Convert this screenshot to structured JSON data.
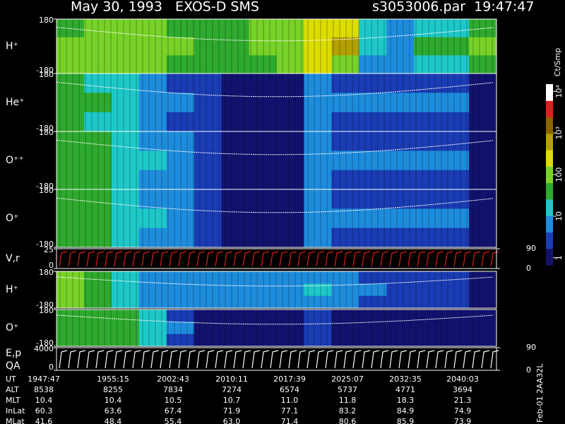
{
  "header": {
    "title": "May 30, 1993   EXOS-D SMS",
    "file": "s3053006.par  19:47:47",
    "footer": "Feb-01 2AA32L"
  },
  "colorbar": {
    "label": "Ct/Smp",
    "scale": "log",
    "lim": [
      0.67,
      15000
    ],
    "ticks": [
      1,
      10,
      100,
      {
        "value": 1000,
        "label": "10³"
      },
      {
        "value": 10000,
        "label": "10⁴"
      }
    ],
    "colors": [
      "#12126e",
      "#1a3cb4",
      "#1e8cdc",
      "#1ec8c8",
      "#2eaa2e",
      "#78d228",
      "#dcdc00",
      "#b4a000",
      "#8c6400",
      "#dc1e1e",
      "#ffffff"
    ]
  },
  "chart_data": [
    {
      "type": "heatmap",
      "label": "H⁺",
      "ylim": [
        -180,
        180
      ],
      "yticks": [
        -180,
        180
      ],
      "values": [
        [
          60,
          80,
          100,
          80,
          60,
          50,
          60,
          80,
          120,
          200,
          300,
          15,
          8,
          20,
          20,
          50
        ],
        [
          100,
          120,
          150,
          120,
          80,
          60,
          60,
          80,
          150,
          300,
          400,
          20,
          10,
          30,
          30,
          80
        ],
        [
          80,
          100,
          120,
          100,
          60,
          50,
          50,
          60,
          100,
          200,
          150,
          10,
          5,
          15,
          15,
          60
        ]
      ]
    },
    {
      "type": "heatmap",
      "label": "He⁺",
      "ylim": [
        -180,
        180
      ],
      "yticks": [
        -180,
        180
      ],
      "values": [
        [
          30,
          25,
          15,
          8,
          4,
          2,
          1,
          1,
          1,
          5,
          3,
          3,
          3,
          3,
          3,
          1
        ],
        [
          40,
          35,
          20,
          10,
          5,
          2,
          1,
          1,
          1,
          8,
          5,
          5,
          5,
          5,
          5,
          1
        ],
        [
          30,
          25,
          15,
          8,
          4,
          2,
          1,
          1,
          1,
          5,
          3,
          3,
          3,
          3,
          3,
          1
        ]
      ]
    },
    {
      "type": "heatmap",
      "label": "O⁺⁺",
      "ylim": [
        -180,
        180
      ],
      "yticks": [
        -180,
        180
      ],
      "values": [
        [
          40,
          30,
          20,
          10,
          5,
          2,
          1,
          1,
          1,
          6,
          4,
          4,
          4,
          4,
          4,
          1
        ],
        [
          50,
          40,
          25,
          12,
          6,
          2,
          1,
          1,
          1,
          8,
          5,
          5,
          5,
          5,
          5,
          1
        ],
        [
          40,
          30,
          20,
          10,
          5,
          2,
          1,
          1,
          1,
          6,
          4,
          4,
          4,
          4,
          4,
          1
        ]
      ]
    },
    {
      "type": "heatmap",
      "label": "O⁺",
      "ylim": [
        -180,
        180
      ],
      "yticks": [
        -180,
        180
      ],
      "values": [
        [
          40,
          30,
          15,
          10,
          6,
          3,
          1,
          1,
          1,
          6,
          4,
          4,
          4,
          4,
          4,
          1
        ],
        [
          50,
          40,
          20,
          12,
          8,
          3,
          1,
          1,
          1,
          8,
          5,
          5,
          5,
          5,
          5,
          1
        ],
        [
          40,
          30,
          15,
          10,
          6,
          3,
          1,
          1,
          1,
          6,
          4,
          4,
          4,
          4,
          4,
          1
        ]
      ]
    },
    {
      "type": "line",
      "label": "V,r",
      "ylim": [
        0,
        25
      ],
      "yticks": [
        0,
        25
      ],
      "y2lim": [
        0,
        90
      ],
      "y2ticks": [
        0,
        90
      ],
      "color": "#dc1e1e"
    },
    {
      "type": "heatmap",
      "label": "H⁺",
      "ylim": [
        -180,
        180
      ],
      "yticks": [
        -180,
        180
      ],
      "values": [
        [
          100,
          40,
          20,
          8,
          5,
          5,
          5,
          5,
          6,
          8,
          6,
          4,
          3,
          3,
          3,
          1
        ],
        [
          150,
          50,
          25,
          10,
          6,
          6,
          6,
          6,
          8,
          12,
          8,
          5,
          4,
          4,
          4,
          1
        ],
        [
          100,
          40,
          20,
          8,
          5,
          5,
          5,
          5,
          6,
          8,
          6,
          4,
          3,
          3,
          3,
          1
        ]
      ]
    },
    {
      "type": "heatmap",
      "label": "O⁺",
      "ylim": [
        -180,
        180
      ],
      "yticks": [
        -180,
        180
      ],
      "values": [
        [
          50,
          40,
          30,
          15,
          4,
          1,
          1,
          1,
          1,
          2,
          1,
          1,
          1,
          1,
          1,
          1
        ],
        [
          60,
          50,
          35,
          20,
          5,
          1,
          1,
          1,
          1,
          3,
          1,
          1,
          1,
          1,
          1,
          1
        ],
        [
          50,
          40,
          30,
          15,
          4,
          1,
          1,
          1,
          1,
          2,
          1,
          1,
          1,
          1,
          1,
          1
        ]
      ]
    },
    {
      "type": "line",
      "label": "E,p",
      "label2": "QA",
      "ylim": [
        0,
        4000
      ],
      "yticks": [
        0,
        4000
      ],
      "y2lim": [
        0,
        90
      ],
      "y2ticks": [
        0,
        90
      ],
      "color": "#ffffff"
    }
  ],
  "ephemeris": {
    "rows": [
      [
        "UT",
        "1947:47",
        "1955:15",
        "2002:43",
        "2010:11",
        "2017:39",
        "2025:07",
        "2032:35",
        "2040:03"
      ],
      [
        "ALT",
        "8538",
        "8255",
        "7834",
        "7274",
        "6574",
        "5737",
        "4771",
        "3694"
      ],
      [
        "MLT",
        "10.4",
        "10.4",
        "10.5",
        "10.7",
        "11.0",
        "11.8",
        "18.3",
        "21.3"
      ],
      [
        "InLat",
        "60.3",
        "63.6",
        "67.4",
        "71.9",
        "77.1",
        "83.2",
        "84.9",
        "74.9"
      ],
      [
        "MLat",
        "41.6",
        "48.4",
        "55.4",
        "63.0",
        "71.4",
        "80.6",
        "85.9",
        "73.9"
      ]
    ]
  }
}
